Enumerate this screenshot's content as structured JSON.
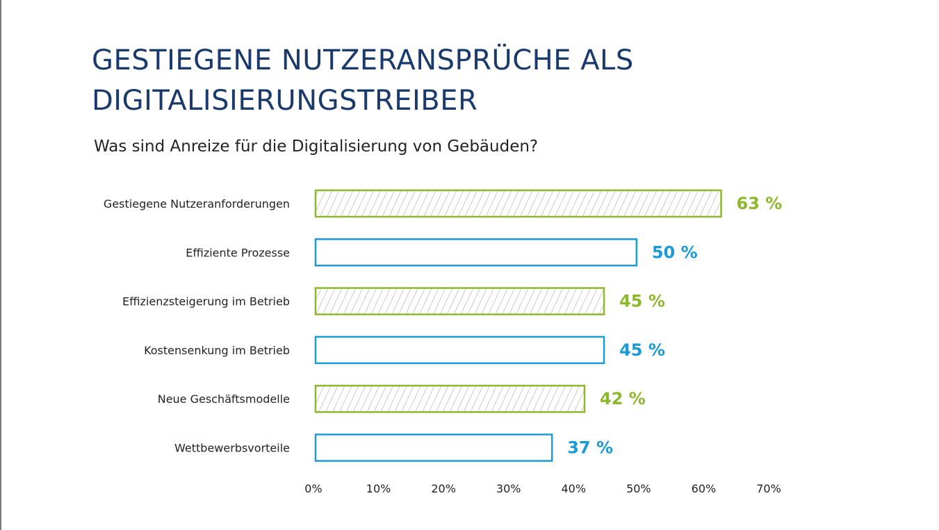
{
  "title_lines": [
    "GESTIEGENE NUTZERANSPRÜCHE ALS",
    "DIGITALISIERUNGSTREIBER"
  ],
  "subtitle": "Was sind Anreize für die Digitalisierung von Gebäuden?",
  "colors": {
    "green": "#8db82d",
    "blue": "#1a9ad6",
    "title": "#1a3a6b",
    "hatch": "#9a9a9a"
  },
  "chart_data": {
    "type": "bar",
    "orientation": "horizontal",
    "categories": [
      "Gestiegene Nutzeranforderungen",
      "Effiziente Prozesse",
      "Effizienzsteigerung im Betrieb",
      "Kostensenkung im Betrieb",
      "Neue Geschäftsmodelle",
      "Wettbewerbsvorteile"
    ],
    "values": [
      63,
      50,
      45,
      45,
      42,
      37
    ],
    "value_labels": [
      "63 %",
      "50 %",
      "45 %",
      "45 %",
      "42 %",
      "37 %"
    ],
    "styles": [
      "hatched-green",
      "outline-blue",
      "hatched-green",
      "outline-blue",
      "hatched-green",
      "outline-blue"
    ],
    "xlim": [
      0,
      70
    ],
    "xticks": [
      "0%",
      "10%",
      "20%",
      "30%",
      "40%",
      "50%",
      "60%",
      "70%"
    ],
    "grid": false,
    "legend": "none"
  }
}
